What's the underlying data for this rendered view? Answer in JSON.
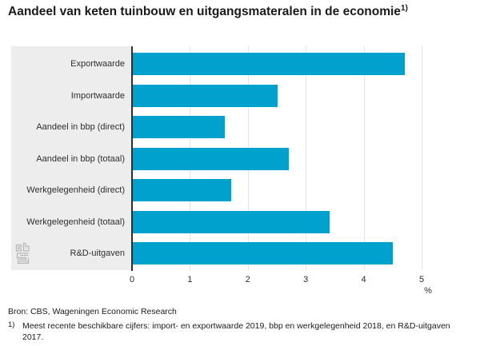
{
  "title": {
    "text": "Aandeel van keten tuinbouw en uitgangsmateralen in de economie",
    "superscript": "1)"
  },
  "chart_data": {
    "type": "bar",
    "orientation": "horizontal",
    "title": "Aandeel van keten tuinbouw en uitgangsmateralen in de economie",
    "categories": [
      "Exportwaarde",
      "Importwaarde",
      "Aandeel in bbp (direct)",
      "Aandeel in bbp (totaal)",
      "Werkgelegenheid (direct)",
      "Werkgelegenheid (totaal)",
      "R&D-uitgaven"
    ],
    "values": [
      4.7,
      2.5,
      1.6,
      2.7,
      1.7,
      3.4,
      4.5
    ],
    "xlabel": "%",
    "ylabel": "",
    "xlim": [
      0,
      5
    ],
    "x_ticks": [
      "0",
      "1",
      "2",
      "3",
      "4",
      "5"
    ],
    "grid": true,
    "legend": "none",
    "bar_color": "#00a1cd",
    "panel_color": "#ededed",
    "unit_label": "%"
  },
  "footer": {
    "source": "Bron: CBS, Wageningen Economic Research",
    "footnote_marker": "1)",
    "footnote_text": "Meest recente beschikbare cijfers: import- en exportwaarde 2019, bbp en werkgelegenheid 2018, en R&D-uitgaven 2017."
  },
  "logo": {
    "name": "cbs-logo"
  }
}
